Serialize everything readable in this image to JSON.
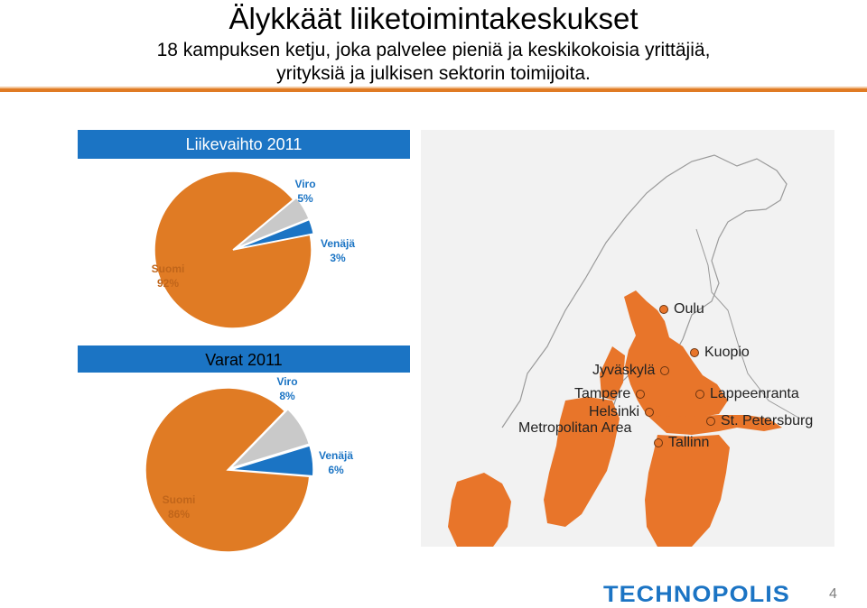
{
  "title": "Älykkäät liiketoimintakeskukset",
  "subtitle": "18 kampuksen ketju, joka palvelee pieniä ja keskikokoisia yrittäjiä,\nyrityksiä ja julkisen sektorin toimijoita.",
  "colors": {
    "accent": "#e07b24",
    "brand_blue": "#1b74c4",
    "viro": "#c9c9c9",
    "map_land": "#e8752a"
  },
  "chart_data": [
    {
      "type": "pie",
      "title": "Liikevaihto 2011",
      "slices": [
        {
          "name": "Suomi",
          "value": 92,
          "label": "92%",
          "color": "#e07b24"
        },
        {
          "name": "Viro",
          "value": 5,
          "label": "5%",
          "color": "#c9c9c9"
        },
        {
          "name": "Venäjä",
          "value": 3,
          "label": "3%",
          "color": "#1b74c4"
        }
      ]
    },
    {
      "type": "pie",
      "title": "Varat 2011",
      "slices": [
        {
          "name": "Suomi",
          "value": 86,
          "label": "86%",
          "color": "#e07b24"
        },
        {
          "name": "Viro",
          "value": 8,
          "label": "8%",
          "color": "#c9c9c9"
        },
        {
          "name": "Venäjä",
          "value": 6,
          "label": "6%",
          "color": "#1b74c4"
        }
      ]
    }
  ],
  "map": {
    "cities": [
      {
        "name": "Oulu",
        "icon": "location-marker-icon"
      },
      {
        "name": "Kuopio",
        "icon": "location-marker-icon"
      },
      {
        "name": "Jyväskylä",
        "icon": "location-marker-icon"
      },
      {
        "name": "Tampere",
        "icon": "location-marker-icon"
      },
      {
        "name": "Lappeenranta",
        "icon": "location-marker-icon"
      },
      {
        "name": "Helsinki",
        "icon": "location-marker-icon"
      },
      {
        "name": "St. Petersburg",
        "icon": "location-marker-icon"
      },
      {
        "name": "Metropolitan Area",
        "icon": ""
      },
      {
        "name": "Tallinn",
        "icon": "location-marker-icon"
      }
    ]
  },
  "footer": {
    "logo": "TECHNOPOLIS",
    "page_number": "4"
  }
}
